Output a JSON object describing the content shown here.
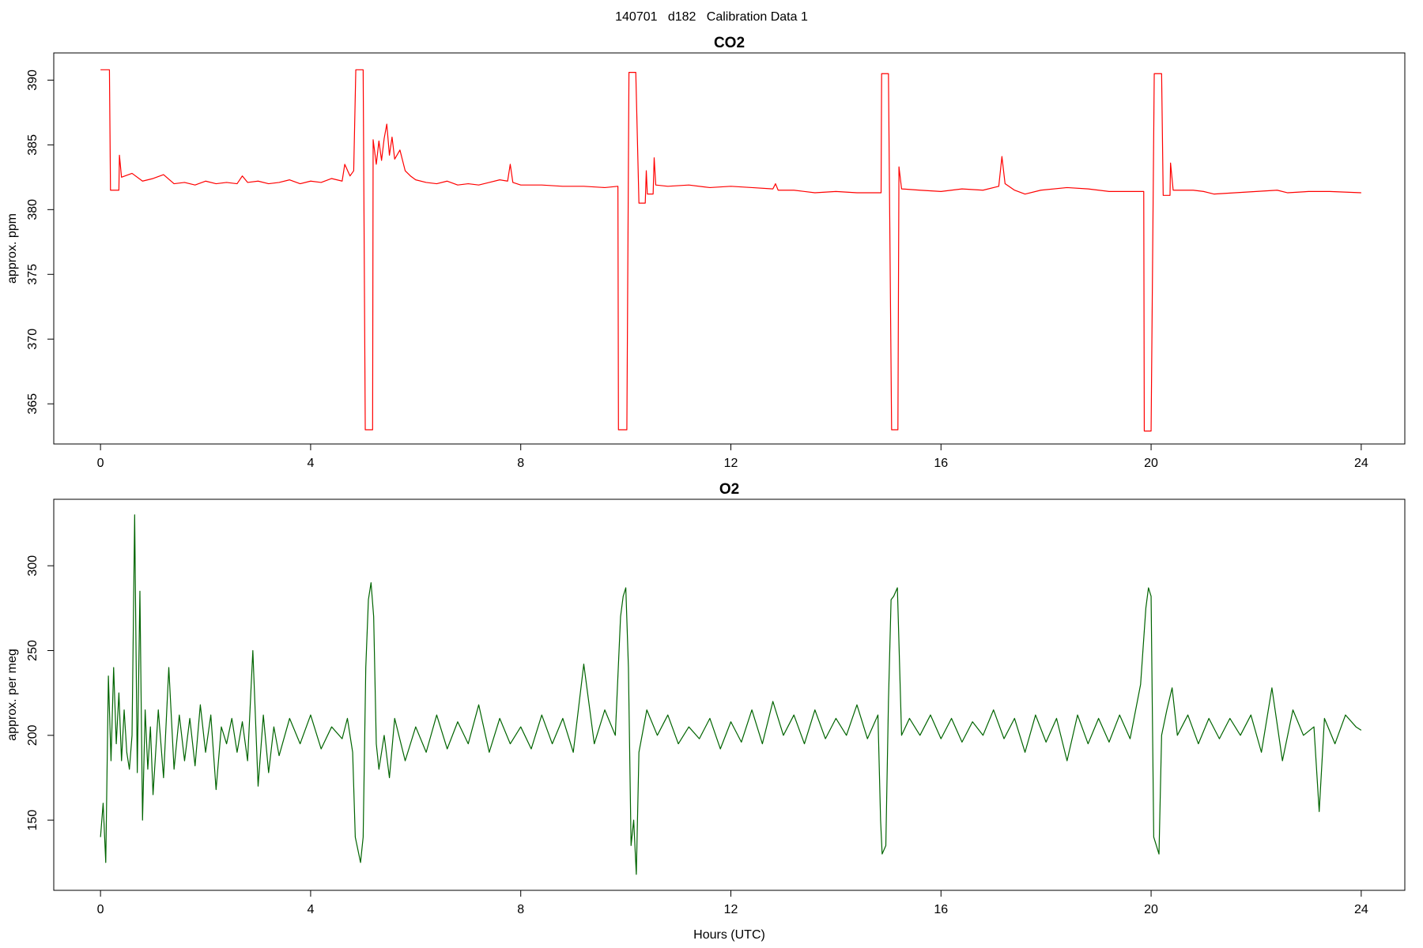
{
  "title": "140701   d182   Calibration Data 1",
  "chart_data": [
    {
      "type": "line",
      "title": "CO2",
      "ylabel": "approx. ppm",
      "xlim": [
        -0.89,
        24.83
      ],
      "xticks": [
        0,
        4,
        8,
        12,
        16,
        20,
        24
      ],
      "ylim": [
        361.9,
        392.1
      ],
      "yticks": [
        365,
        370,
        375,
        380,
        385,
        390
      ],
      "x": [
        0,
        0.17,
        0.19,
        0.35,
        0.36,
        0.4,
        0.6,
        0.8,
        1.0,
        1.2,
        1.4,
        1.6,
        1.8,
        2.0,
        2.2,
        2.4,
        2.6,
        2.7,
        2.8,
        3.0,
        3.2,
        3.4,
        3.6,
        3.8,
        4.0,
        4.2,
        4.4,
        4.6,
        4.65,
        4.75,
        4.82,
        4.86,
        5.0,
        5.04,
        5.18,
        5.19,
        5.25,
        5.3,
        5.35,
        5.4,
        5.45,
        5.5,
        5.55,
        5.6,
        5.7,
        5.8,
        5.9,
        6.0,
        6.2,
        6.4,
        6.6,
        6.8,
        7.0,
        7.2,
        7.4,
        7.6,
        7.75,
        7.8,
        7.85,
        8.0,
        8.4,
        8.8,
        9.2,
        9.6,
        9.85,
        9.86,
        10.02,
        10.06,
        10.19,
        10.25,
        10.37,
        10.39,
        10.41,
        10.52,
        10.54,
        10.57,
        10.8,
        11.2,
        11.6,
        12.0,
        12.4,
        12.8,
        12.85,
        12.9,
        13.2,
        13.6,
        14.0,
        14.4,
        14.86,
        14.87,
        15.0,
        15.06,
        15.18,
        15.2,
        15.25,
        15.6,
        16.0,
        16.4,
        16.8,
        17.1,
        17.16,
        17.22,
        17.4,
        17.6,
        17.9,
        18.4,
        18.8,
        19.2,
        19.5,
        19.86,
        19.87,
        20.0,
        20.06,
        20.2,
        20.23,
        20.36,
        20.37,
        20.42,
        20.8,
        21.0,
        21.2,
        21.6,
        22.0,
        22.4,
        22.6,
        23.0,
        23.4,
        24.0
      ],
      "series": [
        {
          "color": "#ff0000",
          "values": [
            390.8,
            390.8,
            381.5,
            381.5,
            384.2,
            382.5,
            382.8,
            382.2,
            382.4,
            382.7,
            382.0,
            382.1,
            381.9,
            382.2,
            382.0,
            382.1,
            382.0,
            382.6,
            382.1,
            382.2,
            382.0,
            382.1,
            382.3,
            382.0,
            382.2,
            382.1,
            382.4,
            382.2,
            383.5,
            382.6,
            383.0,
            390.8,
            390.8,
            363.0,
            363.0,
            385.4,
            383.5,
            385.3,
            383.8,
            385.5,
            386.6,
            384.2,
            385.6,
            383.9,
            384.6,
            383.0,
            382.6,
            382.3,
            382.1,
            382.0,
            382.2,
            381.9,
            382.0,
            381.9,
            382.1,
            382.3,
            382.2,
            383.5,
            382.1,
            381.9,
            381.9,
            381.8,
            381.8,
            381.7,
            381.8,
            363.0,
            363.0,
            390.6,
            390.6,
            380.5,
            380.5,
            383.0,
            381.2,
            381.2,
            384.0,
            381.9,
            381.8,
            381.9,
            381.7,
            381.8,
            381.7,
            381.6,
            382.0,
            381.5,
            381.5,
            381.3,
            381.4,
            381.3,
            381.3,
            390.5,
            390.5,
            363.0,
            363.0,
            383.3,
            381.6,
            381.5,
            381.4,
            381.6,
            381.5,
            381.8,
            384.1,
            382.0,
            381.5,
            381.2,
            381.5,
            381.7,
            381.6,
            381.4,
            381.4,
            381.4,
            362.9,
            362.9,
            390.5,
            390.5,
            381.1,
            381.1,
            383.6,
            381.5,
            381.5,
            381.4,
            381.2,
            381.3,
            381.4,
            381.5,
            381.3,
            381.4,
            381.4,
            381.3
          ]
        }
      ]
    },
    {
      "type": "line",
      "title": "O2",
      "ylabel": "approx. per meg",
      "xlabel": "Hours (UTC)",
      "xlim": [
        -0.89,
        24.83
      ],
      "xticks": [
        0,
        4,
        8,
        12,
        16,
        20,
        24
      ],
      "ylim": [
        108.6,
        339.2
      ],
      "yticks": [
        150,
        200,
        250,
        300
      ],
      "x": [
        0,
        0.05,
        0.1,
        0.15,
        0.2,
        0.25,
        0.3,
        0.35,
        0.4,
        0.45,
        0.5,
        0.55,
        0.6,
        0.65,
        0.7,
        0.75,
        0.8,
        0.85,
        0.9,
        0.95,
        1.0,
        1.1,
        1.2,
        1.3,
        1.4,
        1.5,
        1.6,
        1.7,
        1.8,
        1.9,
        2.0,
        2.1,
        2.2,
        2.3,
        2.4,
        2.5,
        2.6,
        2.7,
        2.8,
        2.9,
        3.0,
        3.1,
        3.2,
        3.3,
        3.4,
        3.6,
        3.8,
        4.0,
        4.2,
        4.4,
        4.6,
        4.7,
        4.8,
        4.85,
        4.95,
        5.0,
        5.05,
        5.1,
        5.15,
        5.2,
        5.25,
        5.3,
        5.4,
        5.5,
        5.6,
        5.8,
        6.0,
        6.2,
        6.4,
        6.6,
        6.8,
        7.0,
        7.2,
        7.4,
        7.6,
        7.8,
        8.0,
        8.2,
        8.4,
        8.6,
        8.8,
        9.0,
        9.2,
        9.4,
        9.6,
        9.8,
        9.9,
        9.95,
        10.0,
        10.05,
        10.1,
        10.15,
        10.2,
        10.25,
        10.4,
        10.6,
        10.8,
        11.0,
        11.2,
        11.4,
        11.6,
        11.8,
        12.0,
        12.2,
        12.4,
        12.6,
        12.8,
        13.0,
        13.2,
        13.4,
        13.6,
        13.8,
        14.0,
        14.2,
        14.4,
        14.6,
        14.8,
        14.85,
        14.88,
        14.95,
        15.0,
        15.05,
        15.1,
        15.17,
        15.25,
        15.4,
        15.6,
        15.8,
        16.0,
        16.2,
        16.4,
        16.6,
        16.8,
        17.0,
        17.2,
        17.4,
        17.6,
        17.8,
        18.0,
        18.2,
        18.4,
        18.6,
        18.8,
        19.0,
        19.2,
        19.4,
        19.6,
        19.8,
        19.9,
        19.95,
        20.0,
        20.05,
        20.1,
        20.15,
        20.2,
        20.3,
        20.4,
        20.5,
        20.7,
        20.9,
        21.1,
        21.3,
        21.5,
        21.7,
        21.9,
        22.1,
        22.3,
        22.5,
        22.7,
        22.9,
        23.1,
        23.2,
        23.3,
        23.5,
        23.7,
        23.9,
        24.0
      ],
      "series": [
        {
          "color": "#006400",
          "values": [
            140,
            160,
            125,
            235,
            185,
            240,
            195,
            225,
            185,
            215,
            190,
            180,
            200,
            330,
            178,
            285,
            150,
            215,
            180,
            205,
            165,
            215,
            175,
            240,
            180,
            212,
            185,
            210,
            182,
            218,
            190,
            212,
            168,
            205,
            195,
            210,
            190,
            208,
            185,
            250,
            170,
            212,
            178,
            205,
            188,
            210,
            195,
            212,
            192,
            205,
            198,
            210,
            190,
            140,
            125,
            140,
            240,
            280,
            290,
            270,
            195,
            180,
            200,
            175,
            210,
            185,
            205,
            190,
            212,
            192,
            208,
            195,
            218,
            190,
            210,
            195,
            205,
            192,
            212,
            195,
            210,
            190,
            242,
            195,
            215,
            200,
            270,
            282,
            287,
            240,
            135,
            150,
            118,
            190,
            215,
            200,
            212,
            195,
            205,
            198,
            210,
            192,
            208,
            196,
            215,
            195,
            220,
            200,
            212,
            195,
            215,
            198,
            210,
            200,
            218,
            198,
            212,
            150,
            130,
            135,
            220,
            280,
            282,
            287,
            200,
            210,
            200,
            212,
            198,
            210,
            196,
            208,
            200,
            215,
            198,
            210,
            190,
            212,
            196,
            210,
            185,
            212,
            195,
            210,
            196,
            212,
            198,
            230,
            275,
            287,
            282,
            140,
            135,
            130,
            200,
            215,
            228,
            200,
            212,
            195,
            210,
            198,
            210,
            200,
            212,
            190,
            228,
            185,
            215,
            200,
            205,
            155,
            210,
            195,
            212,
            205,
            203
          ]
        }
      ]
    }
  ]
}
